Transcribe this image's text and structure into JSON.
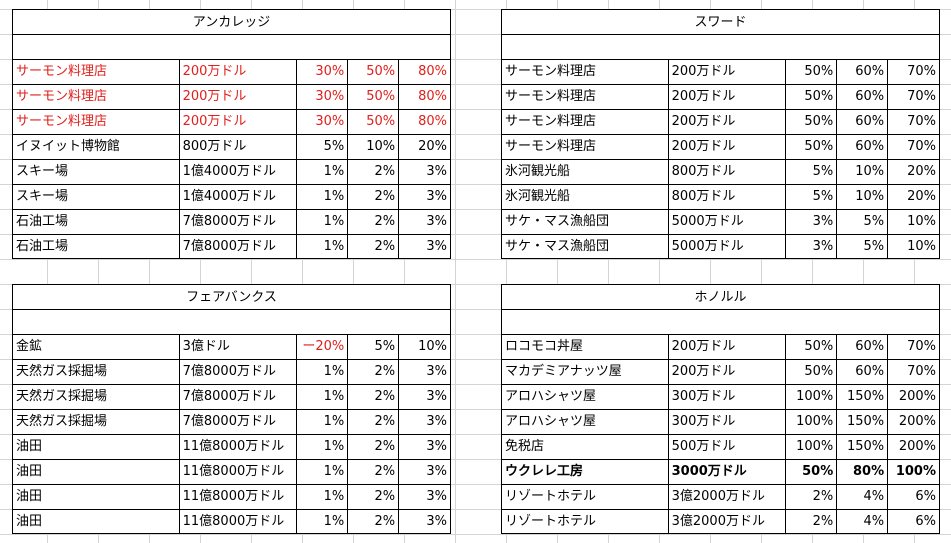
{
  "tables": [
    {
      "id": "anchorage",
      "title": "アンカレッジ",
      "rows": [
        {
          "name": "サーモン料理店",
          "price": "200万ドル",
          "p1": "30%",
          "p2": "50%",
          "p3": "80%",
          "style": "red"
        },
        {
          "name": "サーモン料理店",
          "price": "200万ドル",
          "p1": "30%",
          "p2": "50%",
          "p3": "80%",
          "style": "red"
        },
        {
          "name": "サーモン料理店",
          "price": "200万ドル",
          "p1": "30%",
          "p2": "50%",
          "p3": "80%",
          "style": "red"
        },
        {
          "name": "イヌイット博物館",
          "price": "800万ドル",
          "p1": "5%",
          "p2": "10%",
          "p3": "20%",
          "style": ""
        },
        {
          "name": "スキー場",
          "price": "1億4000万ドル",
          "p1": "1%",
          "p2": "2%",
          "p3": "3%",
          "style": ""
        },
        {
          "name": "スキー場",
          "price": "1億4000万ドル",
          "p1": "1%",
          "p2": "2%",
          "p3": "3%",
          "style": ""
        },
        {
          "name": "石油工場",
          "price": "7億8000万ドル",
          "p1": "1%",
          "p2": "2%",
          "p3": "3%",
          "style": ""
        },
        {
          "name": "石油工場",
          "price": "7億8000万ドル",
          "p1": "1%",
          "p2": "2%",
          "p3": "3%",
          "style": ""
        }
      ]
    },
    {
      "id": "seward",
      "title": "スワード",
      "rows": [
        {
          "name": "サーモン料理店",
          "price": "200万ドル",
          "p1": "50%",
          "p2": "60%",
          "p3": "70%",
          "style": ""
        },
        {
          "name": "サーモン料理店",
          "price": "200万ドル",
          "p1": "50%",
          "p2": "60%",
          "p3": "70%",
          "style": ""
        },
        {
          "name": "サーモン料理店",
          "price": "200万ドル",
          "p1": "50%",
          "p2": "60%",
          "p3": "70%",
          "style": ""
        },
        {
          "name": "サーモン料理店",
          "price": "200万ドル",
          "p1": "50%",
          "p2": "60%",
          "p3": "70%",
          "style": ""
        },
        {
          "name": "氷河観光船",
          "price": "800万ドル",
          "p1": "5%",
          "p2": "10%",
          "p3": "20%",
          "style": ""
        },
        {
          "name": "氷河観光船",
          "price": "800万ドル",
          "p1": "5%",
          "p2": "10%",
          "p3": "20%",
          "style": ""
        },
        {
          "name": "サケ・マス漁船団",
          "price": "5000万ドル",
          "p1": "3%",
          "p2": "5%",
          "p3": "10%",
          "style": ""
        },
        {
          "name": "サケ・マス漁船団",
          "price": "5000万ドル",
          "p1": "3%",
          "p2": "5%",
          "p3": "10%",
          "style": ""
        }
      ]
    },
    {
      "id": "fairbanks",
      "title": "フェアバンクス",
      "rows": [
        {
          "name": "金鉱",
          "price": "3億ドル",
          "p1": "ー20%",
          "p2": "5%",
          "p3": "10%",
          "style": "red-p1"
        },
        {
          "name": "天然ガス採掘場",
          "price": "7億8000万ドル",
          "p1": "1%",
          "p2": "2%",
          "p3": "3%",
          "style": ""
        },
        {
          "name": "天然ガス採掘場",
          "price": "7億8000万ドル",
          "p1": "1%",
          "p2": "2%",
          "p3": "3%",
          "style": ""
        },
        {
          "name": "天然ガス採掘場",
          "price": "7億8000万ドル",
          "p1": "1%",
          "p2": "2%",
          "p3": "3%",
          "style": ""
        },
        {
          "name": "油田",
          "price": "11億8000万ドル",
          "p1": "1%",
          "p2": "2%",
          "p3": "3%",
          "style": ""
        },
        {
          "name": "油田",
          "price": "11億8000万ドル",
          "p1": "1%",
          "p2": "2%",
          "p3": "3%",
          "style": ""
        },
        {
          "name": "油田",
          "price": "11億8000万ドル",
          "p1": "1%",
          "p2": "2%",
          "p3": "3%",
          "style": ""
        },
        {
          "name": "油田",
          "price": "11億8000万ドル",
          "p1": "1%",
          "p2": "2%",
          "p3": "3%",
          "style": ""
        }
      ]
    },
    {
      "id": "honolulu",
      "title": "ホノルル",
      "rows": [
        {
          "name": "ロコモコ丼屋",
          "price": "200万ドル",
          "p1": "50%",
          "p2": "60%",
          "p3": "70%",
          "style": ""
        },
        {
          "name": "マカデミアナッツ屋",
          "price": "200万ドル",
          "p1": "50%",
          "p2": "60%",
          "p3": "70%",
          "style": ""
        },
        {
          "name": "アロハシャツ屋",
          "price": "300万ドル",
          "p1": "100%",
          "p2": "150%",
          "p3": "200%",
          "style": ""
        },
        {
          "name": "アロハシャツ屋",
          "price": "300万ドル",
          "p1": "100%",
          "p2": "150%",
          "p3": "200%",
          "style": ""
        },
        {
          "name": "免税店",
          "price": "500万ドル",
          "p1": "100%",
          "p2": "150%",
          "p3": "200%",
          "style": ""
        },
        {
          "name": "ウクレレ工房",
          "price": "3000万ドル",
          "p1": "50%",
          "p2": "80%",
          "p3": "100%",
          "style": "bold"
        },
        {
          "name": "リゾートホテル",
          "price": "3億2000万ドル",
          "p1": "2%",
          "p2": "4%",
          "p3": "6%",
          "style": ""
        },
        {
          "name": "リゾートホテル",
          "price": "3億2000万ドル",
          "p1": "2%",
          "p2": "4%",
          "p3": "6%",
          "style": ""
        }
      ]
    }
  ],
  "colors": {
    "red": "#e0201c",
    "grid": "#d4d4d4",
    "border": "#000000"
  }
}
